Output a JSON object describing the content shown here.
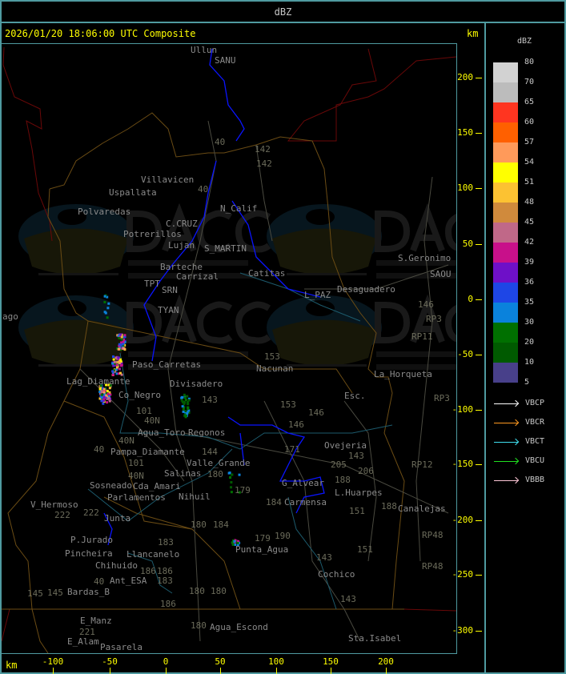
{
  "header": {
    "title": "dBZ"
  },
  "main": {
    "timestamp_title": "2026/01/20 18:06:00 UTC Composite",
    "unit_top": "km",
    "unit_bottom": "km"
  },
  "axes": {
    "y_ticks": [
      "200",
      "150",
      "100",
      "50",
      "0",
      "-50",
      "-100",
      "-150",
      "-200",
      "-250",
      "-300"
    ],
    "x_ticks": [
      "-100",
      "-50",
      "0",
      "50",
      "100",
      "150",
      "200"
    ]
  },
  "legend": {
    "title": "dBZ",
    "levels": [
      {
        "label": "80",
        "color": "#d2d2d2"
      },
      {
        "label": "70",
        "color": "#bcbcbc"
      },
      {
        "label": "65",
        "color": "#ff3520"
      },
      {
        "label": "60",
        "color": "#ff6000"
      },
      {
        "label": "57",
        "color": "#ff9a5a"
      },
      {
        "label": "54",
        "color": "#ffff00"
      },
      {
        "label": "51",
        "color": "#fcc232"
      },
      {
        "label": "48",
        "color": "#d08a3c"
      },
      {
        "label": "45",
        "color": "#c06888"
      },
      {
        "label": "42",
        "color": "#c8108a"
      },
      {
        "label": "39",
        "color": "#6e10c8"
      },
      {
        "label": "36",
        "color": "#1e46e6"
      },
      {
        "label": "35",
        "color": "#0a82dc"
      },
      {
        "label": "30",
        "color": "#007000"
      },
      {
        "label": "20",
        "color": "#005a00"
      },
      {
        "label": "10",
        "color": "#48408a"
      },
      {
        "label": "5",
        "color": ""
      }
    ],
    "radars": [
      {
        "label": "VBCP",
        "color": "#ffffff"
      },
      {
        "label": "VBCR",
        "color": "#ff9a20"
      },
      {
        "label": "VBCT",
        "color": "#40e0f0"
      },
      {
        "label": "VBCU",
        "color": "#20e020"
      },
      {
        "label": "VBBB",
        "color": "#ffc8d8"
      }
    ]
  },
  "watermark": {
    "logo": "DACC",
    "line1": "Dirección de Agricultura",
    "line2": "y Contingencias Climáticas",
    "url": "http://www.contingencias.mendoza.gov.ar"
  },
  "places": [
    "Ullun",
    "SANU",
    "Villavicen",
    "Uspallata",
    "Polvaredas",
    "N_Calif",
    "Potrerillos",
    "C.CRUZ",
    "Lujan",
    "S_MARTIN",
    "Barteche",
    "Carrizal",
    "Catitas",
    "TPT",
    "SRN",
    "TYAN",
    "L_PAZ",
    "Desaguadero",
    "S.Geronimo",
    "SAOU",
    "ago",
    "Paso_Carretas",
    "Nacunan",
    "La_Horqueta",
    "Lag_Diamante",
    "Co_Negro",
    "Divisadero",
    "Esc.",
    "Agua_Toro",
    "Pampa_Diamante",
    "Valle_Grande",
    "Salinas",
    "Cda_Amari",
    "Parlamentos",
    "Sosneado",
    "Nihuil",
    "V_Hermoso",
    "Junta",
    "P.Jurado",
    "Pincheira",
    "Llancanelo",
    "Chihuido",
    "Ant_ESA",
    "Bardas_B",
    "E_Manz",
    "E_Alam",
    "Pasarela",
    "Agua_Escond",
    "Punta_Agua",
    "Carmensa",
    "L.Huarpes",
    "Ovejeria",
    "Canalejas",
    "Cochico",
    "Sta.Isabel",
    "Regonos",
    "G_Alvear"
  ],
  "roads": [
    "40",
    "142",
    "142",
    "40",
    "153",
    "146",
    "146",
    "153",
    "143",
    "143",
    "171",
    "184",
    "179",
    "179",
    "180",
    "184",
    "180",
    "183",
    "186",
    "186",
    "183",
    "180",
    "186",
    "180",
    "151",
    "151",
    "188",
    "188",
    "205",
    "206",
    "101",
    "101",
    "40N",
    "40N",
    "40N",
    "RP3",
    "RP3",
    "RP11",
    "RP12",
    "RP48",
    "RP48",
    "146",
    "145",
    "145",
    "221",
    "222",
    "222",
    "40",
    "143",
    "143",
    "190",
    "144",
    "180",
    "40"
  ]
}
